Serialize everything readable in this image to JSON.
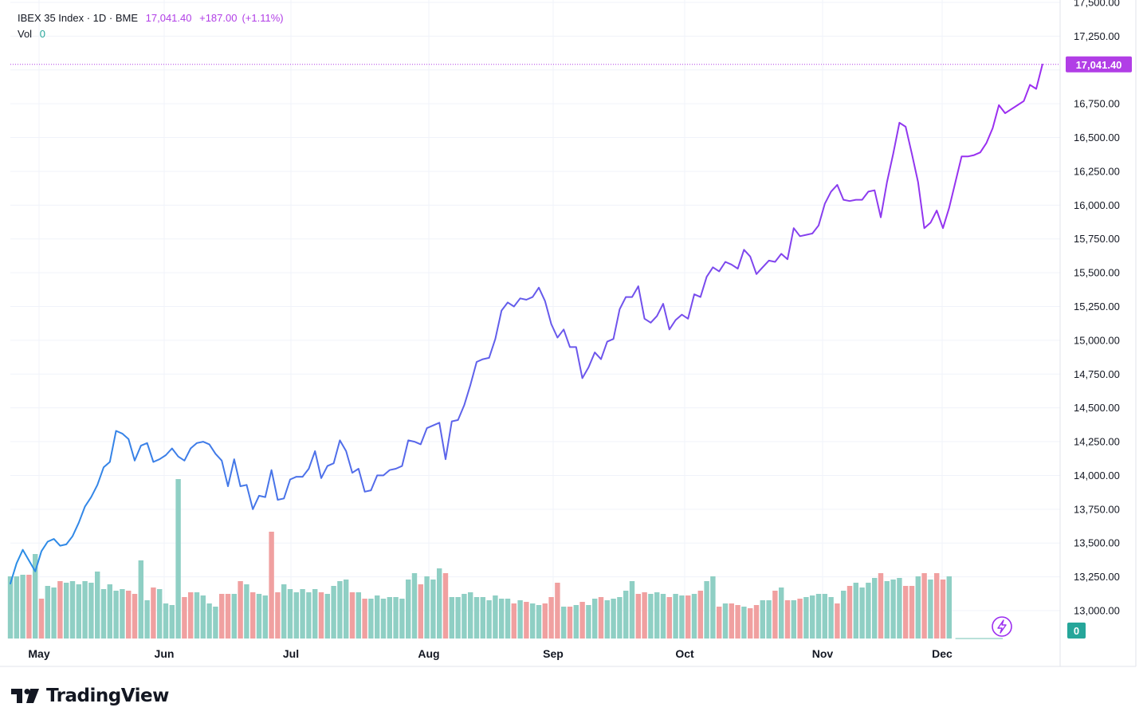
{
  "legend": {
    "symbol_line": "IBEX 35 Index · 1D · BME",
    "last": "17,041.40",
    "change": "+187.00",
    "change_pct": "(+1.11%)",
    "volume_label": "Vol",
    "volume_value": "0"
  },
  "price_axis": {
    "labels": [
      "17,500.00",
      "17,250.00",
      "16,750.00",
      "16,500.00",
      "16,250.00",
      "16,000.00",
      "15,750.00",
      "15,500.00",
      "15,250.00",
      "15,000.00",
      "14,750.00",
      "14,500.00",
      "14,250.00",
      "14,000.00",
      "13,750.00",
      "13,500.00",
      "13,250.00",
      "13,000.00"
    ],
    "last_price_label": "17,041.40",
    "volume_badge": "0"
  },
  "time_axis": {
    "labels": [
      "May",
      "Jun",
      "Jul",
      "Aug",
      "Sep",
      "Oct",
      "Nov",
      "Dec"
    ]
  },
  "colors": {
    "line_start": "#2a8ee6",
    "line_end": "#9c2ef0",
    "last_price": "#b13ee6",
    "volume_up": "#8fcfc4",
    "volume_down": "#f0a0a0",
    "grid": "#f0f3fa"
  },
  "icons": {
    "replay": "lightning-icon",
    "brand": "tradingview-logo-icon"
  },
  "brand": {
    "name": "TradingView"
  },
  "chart_data": {
    "type": "line",
    "title": "IBEX 35 Index · 1D · BME",
    "ylim": [
      12850,
      17550
    ],
    "y_ticks": [
      13000,
      13250,
      13500,
      13750,
      14000,
      14250,
      14500,
      14750,
      15000,
      15250,
      15500,
      15750,
      16000,
      16250,
      16500,
      16750,
      17000,
      17250,
      17500
    ],
    "last_price": 17041.4,
    "x_labels": [
      "May",
      "Jun",
      "Jul",
      "Aug",
      "Sep",
      "Oct",
      "Nov",
      "Dec"
    ],
    "series": [
      {
        "values": [
          13200,
          13350,
          13450,
          13370,
          13290,
          13440,
          13510,
          13530,
          13480,
          13490,
          13550,
          13650,
          13770,
          13840,
          13930,
          14060,
          14100,
          14330,
          14310,
          14270,
          14110,
          14220,
          14240,
          14100,
          14120,
          14150,
          14200,
          14140,
          14110,
          14200,
          14240,
          14250,
          14230,
          14160,
          14110,
          13920,
          14120,
          13920,
          13930,
          13750,
          13850,
          13840,
          14040,
          13820,
          13830,
          13970,
          13990,
          13990,
          14050,
          14180,
          13980,
          14070,
          14090,
          14260,
          14180,
          14020,
          14050,
          13880,
          13890,
          14000,
          14000,
          14040,
          14050,
          14070,
          14260,
          14250,
          14230,
          14350,
          14370,
          14390,
          14120,
          14400,
          14410,
          14520,
          14670,
          14840,
          14860,
          14870,
          15010,
          15220,
          15280,
          15250,
          15310,
          15300,
          15320,
          15390,
          15290,
          15120,
          15020,
          15080,
          14950,
          14950,
          14720,
          14800,
          14910,
          14860,
          14990,
          15010,
          15230,
          15320,
          15320,
          15400,
          15160,
          15130,
          15180,
          15270,
          15080,
          15150,
          15190,
          15160,
          15340,
          15320,
          15470,
          15540,
          15510,
          15580,
          15560,
          15530,
          15670,
          15620,
          15490,
          15540,
          15590,
          15580,
          15640,
          15600,
          15830,
          15770,
          15780,
          15790,
          15850,
          16010,
          16100,
          16150,
          16040,
          16030,
          16040,
          16040,
          16100,
          16110,
          15910,
          16170,
          16380,
          16610,
          16580,
          16380,
          16170,
          15830,
          15870,
          15960,
          15830,
          15980,
          16170,
          16360,
          16360,
          16370,
          16390,
          16460,
          16570,
          16740,
          16680,
          16710,
          16740,
          16770,
          16890,
          16860,
          17040.5
        ]
      }
    ],
    "volume_series": {
      "values": [
        0.39,
        0.39,
        0.4,
        0.4,
        0.53,
        0.25,
        0.33,
        0.32,
        0.36,
        0.35,
        0.36,
        0.34,
        0.36,
        0.35,
        0.42,
        0.31,
        0.34,
        0.3,
        0.31,
        0.3,
        0.28,
        0.49,
        0.24,
        0.32,
        0.31,
        0.22,
        0.21,
        1.0,
        0.26,
        0.29,
        0.29,
        0.27,
        0.22,
        0.2,
        0.28,
        0.28,
        0.28,
        0.36,
        0.34,
        0.29,
        0.28,
        0.27,
        0.67,
        0.29,
        0.34,
        0.31,
        0.29,
        0.31,
        0.29,
        0.31,
        0.29,
        0.28,
        0.33,
        0.36,
        0.37,
        0.29,
        0.29,
        0.25,
        0.25,
        0.27,
        0.25,
        0.26,
        0.26,
        0.25,
        0.37,
        0.41,
        0.34,
        0.39,
        0.37,
        0.44,
        0.41,
        0.26,
        0.26,
        0.28,
        0.29,
        0.26,
        0.26,
        0.24,
        0.27,
        0.25,
        0.25,
        0.22,
        0.24,
        0.23,
        0.22,
        0.21,
        0.22,
        0.26,
        0.35,
        0.2,
        0.2,
        0.21,
        0.23,
        0.21,
        0.25,
        0.26,
        0.24,
        0.25,
        0.26,
        0.3,
        0.36,
        0.28,
        0.29,
        0.28,
        0.29,
        0.28,
        0.26,
        0.28,
        0.27,
        0.27,
        0.28,
        0.3,
        0.36,
        0.39,
        0.2,
        0.22,
        0.22,
        0.21,
        0.2,
        0.19,
        0.21,
        0.24,
        0.24,
        0.3,
        0.32,
        0.24,
        0.24,
        0.25,
        0.26,
        0.27,
        0.28,
        0.28,
        0.26,
        0.22,
        0.3,
        0.33,
        0.35,
        0.32,
        0.35,
        0.38,
        0.41,
        0.36,
        0.37,
        0.38,
        0.33,
        0.33,
        0.39,
        0.41,
        0.37,
        0.41,
        0.37,
        0.39
      ],
      "down": [
        false,
        false,
        false,
        true,
        false,
        true,
        false,
        false,
        true,
        false,
        false,
        false,
        false,
        false,
        false,
        false,
        false,
        false,
        false,
        true,
        true,
        false,
        false,
        true,
        false,
        false,
        false,
        false,
        true,
        true,
        false,
        false,
        false,
        false,
        true,
        true,
        false,
        true,
        false,
        true,
        false,
        false,
        true,
        true,
        false,
        false,
        false,
        false,
        false,
        false,
        true,
        false,
        false,
        false,
        false,
        true,
        false,
        true,
        false,
        false,
        false,
        false,
        false,
        false,
        false,
        false,
        true,
        false,
        false,
        false,
        true,
        false,
        false,
        false,
        false,
        false,
        false,
        false,
        false,
        false,
        false,
        true,
        false,
        true,
        false,
        false,
        true,
        true,
        true,
        false,
        true,
        false,
        true,
        false,
        false,
        true,
        false,
        false,
        false,
        false,
        false,
        true,
        true,
        false,
        false,
        false,
        true,
        false,
        false,
        true,
        false,
        true,
        false,
        false,
        true,
        false,
        true,
        true,
        false,
        true,
        true,
        false,
        false,
        true,
        false,
        true,
        false,
        true,
        false,
        false,
        false,
        false,
        false,
        true,
        false,
        true,
        false,
        false,
        false,
        false,
        true,
        false,
        false,
        false,
        true,
        true,
        false,
        true,
        false,
        true,
        true,
        false
      ]
    }
  }
}
